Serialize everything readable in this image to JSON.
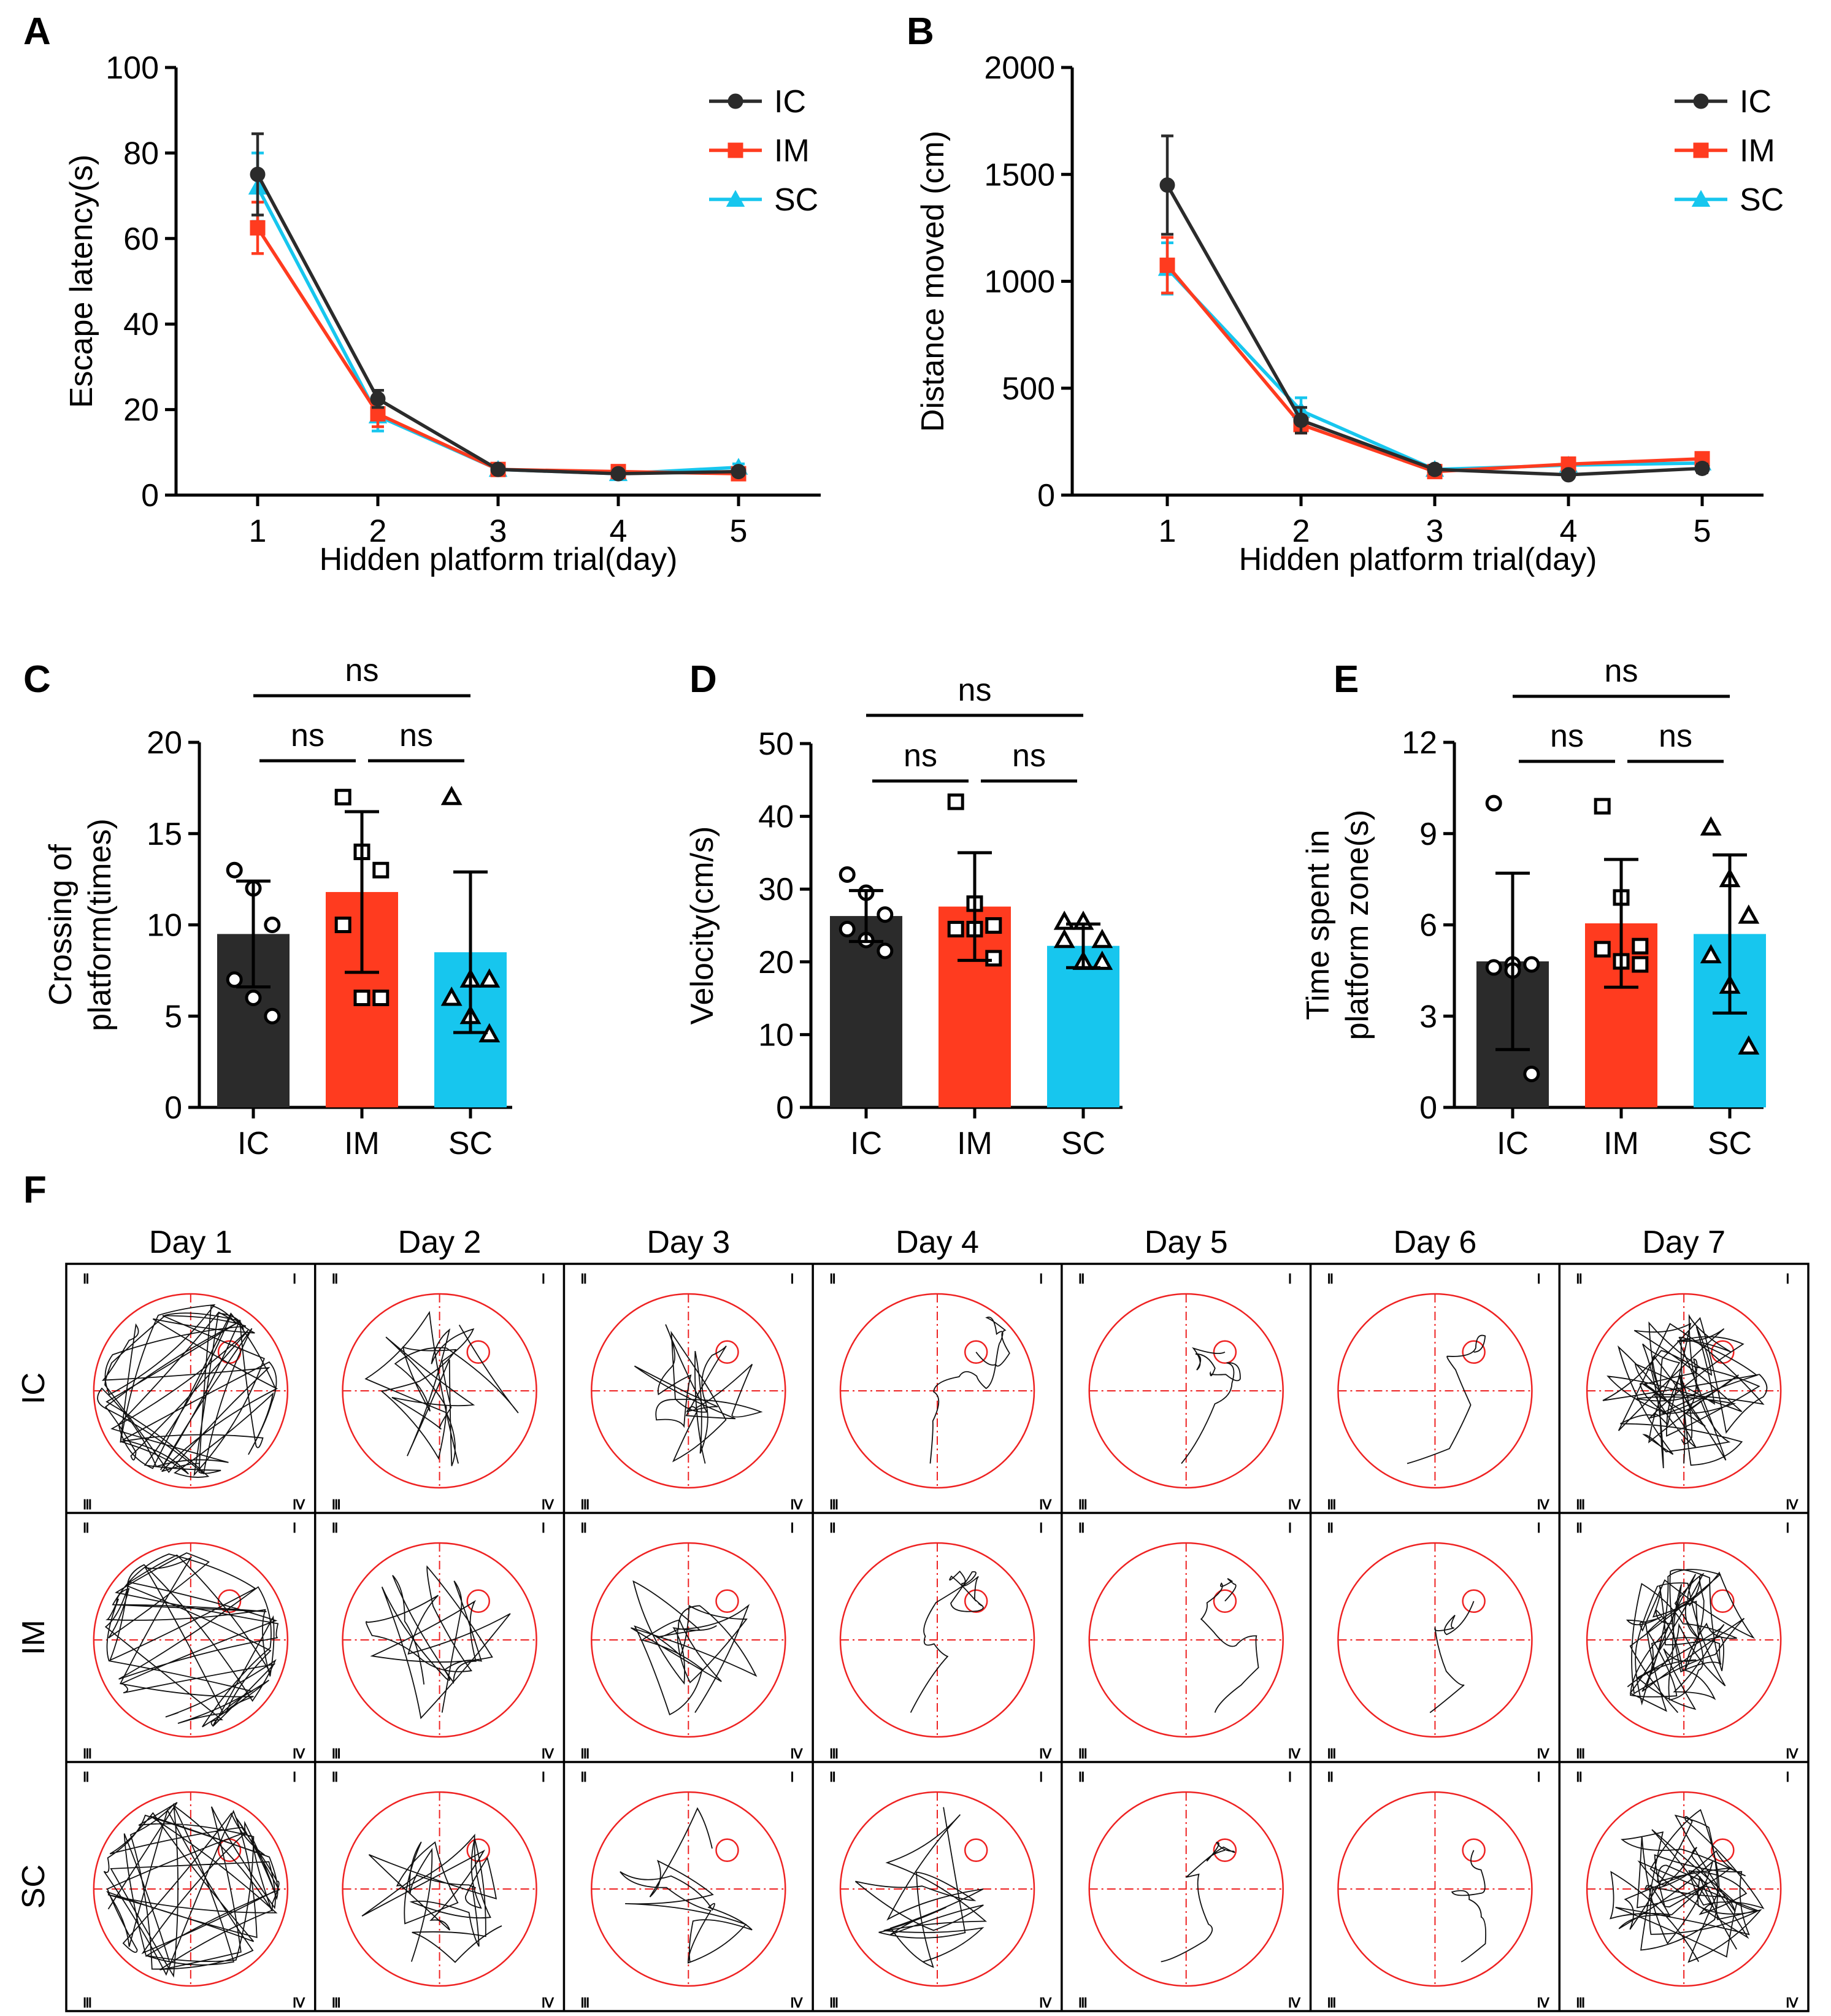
{
  "colors": {
    "IC": "#2b2b2b",
    "IM": "#ff3b1f",
    "SC": "#17c6ee",
    "track": "#111111",
    "pool": "#ee2222"
  },
  "chart_data": [
    {
      "panel": "A",
      "type": "line",
      "xlabel": "Hidden platform trial(day)",
      "ylabel": "Escape latency(s)",
      "x": [
        1,
        2,
        3,
        4,
        5
      ],
      "xticks": [
        "1",
        "2",
        "3",
        "4",
        "5"
      ],
      "ylim": [
        0,
        100
      ],
      "yticks": [
        0,
        20,
        40,
        60,
        80,
        100
      ],
      "legend": "top-right",
      "series": [
        {
          "name": "IC",
          "marker": "circle",
          "values": [
            75,
            22.5,
            6,
            5,
            5.5
          ],
          "err": [
            9.5,
            2,
            0.8,
            0.6,
            0.8
          ]
        },
        {
          "name": "IM",
          "marker": "square",
          "values": [
            62.5,
            19,
            6,
            5.5,
            5
          ],
          "err": [
            6,
            3,
            0.8,
            0.6,
            0.6
          ]
        },
        {
          "name": "SC",
          "marker": "triangle",
          "values": [
            72,
            18.5,
            6,
            5,
            6.5
          ],
          "err": [
            8,
            3.5,
            0.8,
            0.6,
            0.8
          ]
        }
      ]
    },
    {
      "panel": "B",
      "type": "line",
      "xlabel": "Hidden platform trial(day)",
      "ylabel": "Distance moved (cm)",
      "x": [
        1,
        2,
        3,
        4,
        5
      ],
      "xticks": [
        "1",
        "2",
        "3",
        "4",
        "5"
      ],
      "ylim": [
        0,
        2000
      ],
      "yticks": [
        0,
        500,
        1000,
        1500,
        2000
      ],
      "legend": "top-right",
      "series": [
        {
          "name": "IC",
          "marker": "circle",
          "values": [
            1450,
            350,
            120,
            95,
            125
          ],
          "err": [
            230,
            60,
            20,
            15,
            20
          ]
        },
        {
          "name": "IM",
          "marker": "square",
          "values": [
            1075,
            330,
            110,
            145,
            170
          ],
          "err": [
            130,
            40,
            15,
            20,
            20
          ]
        },
        {
          "name": "SC",
          "marker": "triangle",
          "values": [
            1060,
            395,
            120,
            140,
            150
          ],
          "err": [
            120,
            60,
            15,
            20,
            20
          ]
        }
      ]
    },
    {
      "panel": "C",
      "type": "bar",
      "ylabel_lines": [
        "Crossing of",
        "platform(times)"
      ],
      "categories": [
        "IC",
        "IM",
        "SC"
      ],
      "values": [
        9.5,
        11.8,
        8.5
      ],
      "err": [
        2.9,
        4.4,
        4.4
      ],
      "points": [
        [
          13,
          12,
          10,
          7,
          6,
          5
        ],
        [
          17,
          14,
          13,
          10,
          6,
          6
        ],
        [
          17,
          7,
          7,
          6,
          5,
          4
        ]
      ],
      "ylim": [
        0,
        20
      ],
      "yticks": [
        0,
        5,
        10,
        15,
        20
      ],
      "significance": [
        {
          "pair": [
            0,
            1
          ],
          "label": "ns"
        },
        {
          "pair": [
            1,
            2
          ],
          "label": "ns"
        },
        {
          "pair": [
            0,
            2
          ],
          "label": "ns"
        }
      ]
    },
    {
      "panel": "D",
      "type": "bar",
      "ylabel_lines": [
        "Velocity(cm/s)"
      ],
      "categories": [
        "IC",
        "IM",
        "SC"
      ],
      "values": [
        26.3,
        27.6,
        22.2
      ],
      "err": [
        3.5,
        7.4,
        3
      ],
      "points": [
        [
          32,
          29.5,
          26.5,
          24.5,
          23,
          21.5
        ],
        [
          42,
          28,
          25,
          24.5,
          24.5,
          20.5
        ],
        [
          25.5,
          25.5,
          23,
          23,
          20,
          20
        ]
      ],
      "ylim": [
        0,
        50
      ],
      "yticks": [
        0,
        10,
        20,
        30,
        40,
        50
      ],
      "significance": [
        {
          "pair": [
            0,
            1
          ],
          "label": "ns"
        },
        {
          "pair": [
            1,
            2
          ],
          "label": "ns"
        },
        {
          "pair": [
            0,
            2
          ],
          "label": "ns"
        }
      ]
    },
    {
      "panel": "E",
      "type": "bar",
      "ylabel_lines": [
        "Time spent in",
        "platform zone(s)"
      ],
      "categories": [
        "IC",
        "IM",
        "SC"
      ],
      "values": [
        4.8,
        6.05,
        5.7
      ],
      "err": [
        2.9,
        2.1,
        2.6
      ],
      "points": [
        [
          10,
          4.7,
          4.7,
          4.6,
          4.5,
          1.1
        ],
        [
          9.9,
          6.9,
          5.3,
          5.2,
          4.8,
          4.7
        ],
        [
          9.2,
          7.5,
          6.3,
          5,
          4,
          2
        ]
      ],
      "ylim": [
        0,
        12
      ],
      "yticks": [
        0,
        3,
        6,
        9,
        12
      ],
      "significance": [
        {
          "pair": [
            0,
            1
          ],
          "label": "ns"
        },
        {
          "pair": [
            1,
            2
          ],
          "label": "ns"
        },
        {
          "pair": [
            0,
            2
          ],
          "label": "ns"
        }
      ]
    }
  ],
  "panel_letters": [
    "A",
    "B",
    "C",
    "D",
    "E",
    "F"
  ],
  "trajectories": {
    "days": [
      "Day 1",
      "Day 2",
      "Day 3",
      "Day 4",
      "Day 5",
      "Day 6",
      "Day 7"
    ],
    "groups": [
      "IC",
      "IM",
      "SC"
    ],
    "quadrant_labels": [
      "Ⅱ",
      "Ⅰ",
      "Ⅲ",
      "Ⅳ"
    ]
  }
}
